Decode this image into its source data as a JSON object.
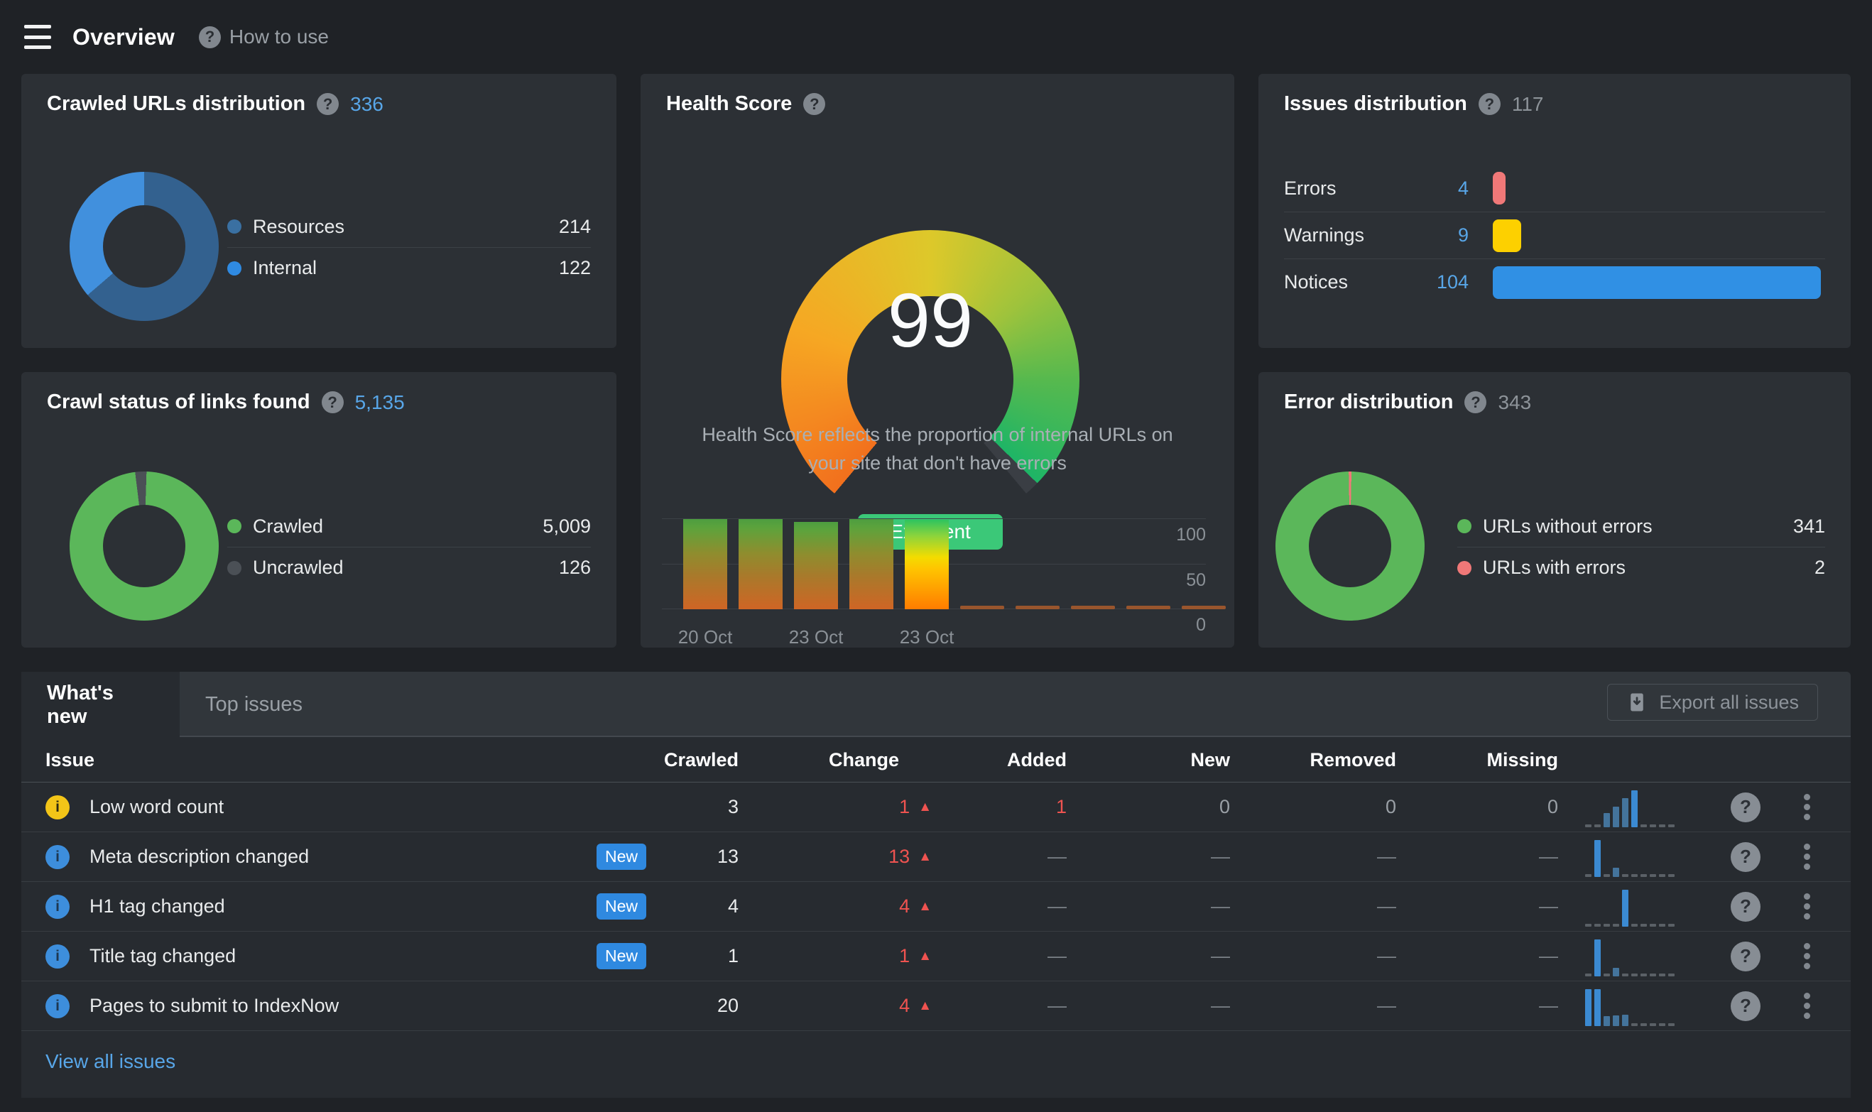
{
  "topbar": {
    "title": "Overview",
    "help_label": "How to use"
  },
  "colors": {
    "accent_blue": "#2f89e0",
    "link_blue": "#58a6e8",
    "red": "#ef5350",
    "green": "#5bb75a",
    "yellow": "#fdd000",
    "salmon": "#f07878",
    "badge_green": "#3bc878",
    "warning_yellow": "#f3c518"
  },
  "cards": {
    "crawled_urls": {
      "title": "Crawled URLs distribution",
      "total": "336",
      "donut": {
        "start": 0,
        "segments": [
          {
            "color": "#33618f",
            "value": 214
          },
          {
            "color": "#4190dd",
            "value": 122
          }
        ]
      },
      "legend": [
        {
          "color": "#3a70a2",
          "label": "Resources",
          "value": "214"
        },
        {
          "color": "#2f8ae2",
          "label": "Internal",
          "value": "122"
        }
      ]
    },
    "health_score": {
      "title": "Health Score",
      "score": "99",
      "rating": "Excellent",
      "description": "Health Score reflects the proportion of internal URLs on your site that don't have errors",
      "gauge": {
        "value": 99,
        "sweep": 280,
        "from": 220,
        "stops": [
          "#f2701d",
          "#f6a723",
          "#ddc82a",
          "#9ec33c",
          "#57b94e",
          "#1eb566"
        ],
        "notch_color": "#3a3e44"
      },
      "trend": {
        "values": [
          100,
          100,
          97,
          100,
          99,
          0,
          0,
          0,
          0,
          0
        ],
        "yticks": [
          "100",
          "50",
          "0"
        ],
        "xlabels": [
          {
            "text": "20 Oct",
            "slot": 0
          },
          {
            "text": "23 Oct",
            "slot": 2
          },
          {
            "text": "23 Oct",
            "slot": 4
          }
        ]
      }
    },
    "issues_distribution": {
      "title": "Issues distribution",
      "total": "117",
      "rows": [
        {
          "label": "Errors",
          "count": "4",
          "value": 4,
          "color": "#f07878"
        },
        {
          "label": "Warnings",
          "count": "9",
          "value": 9,
          "color": "#fdd000"
        },
        {
          "label": "Notices",
          "count": "104",
          "value": 104,
          "color": "#3090e4"
        }
      ],
      "max": 104
    },
    "crawl_status": {
      "title": "Crawl status of links found",
      "total": "5,135",
      "donut": {
        "start": -7,
        "segments": [
          {
            "color": "#4b5056",
            "value": 126
          },
          {
            "color": "#5bb75a",
            "value": 5009
          }
        ]
      },
      "legend": [
        {
          "color": "#5bb75a",
          "label": "Crawled",
          "value": "5,009"
        },
        {
          "color": "#4b5056",
          "label": "Uncrawled",
          "value": "126"
        }
      ]
    },
    "error_distribution": {
      "title": "Error distribution",
      "total": "343",
      "donut": {
        "start": -1,
        "segments": [
          {
            "color": "#f07878",
            "value": 2
          },
          {
            "color": "#5bb75a",
            "value": 341
          }
        ]
      },
      "legend": [
        {
          "color": "#5bb75a",
          "label": "URLs without errors",
          "value": "341"
        },
        {
          "color": "#f07878",
          "label": "URLs with errors",
          "value": "2"
        }
      ]
    }
  },
  "issues_panel": {
    "tabs": [
      {
        "label": "What's new",
        "active": true
      },
      {
        "label": "Top issues",
        "active": false
      }
    ],
    "export_label": "Export all issues",
    "columns": [
      "Issue",
      "Crawled",
      "Change",
      "Added",
      "New",
      "Removed",
      "Missing"
    ],
    "rows": [
      {
        "icon": "warning",
        "icon_color": "#f3c518",
        "title": "Low word count",
        "badge": "",
        "crawled": "3",
        "change": "1",
        "added": "1",
        "added_red": true,
        "new": "0",
        "removed": "0",
        "missing": "0",
        "spark": [
          0,
          0,
          0.3,
          0.5,
          0.75,
          1,
          0,
          0,
          0,
          0
        ]
      },
      {
        "icon": "info",
        "icon_color": "#3d8edc",
        "title": "Meta description changed",
        "badge": "New",
        "crawled": "13",
        "change": "13",
        "added": "—",
        "added_red": false,
        "new": "—",
        "removed": "—",
        "missing": "—",
        "spark": [
          0,
          1,
          0,
          0.15,
          0,
          0,
          0,
          0,
          0,
          0
        ]
      },
      {
        "icon": "info",
        "icon_color": "#3d8edc",
        "title": "H1 tag changed",
        "badge": "New",
        "crawled": "4",
        "change": "4",
        "added": "—",
        "added_red": false,
        "new": "—",
        "removed": "—",
        "missing": "—",
        "spark": [
          0,
          0,
          0,
          0,
          1,
          0,
          0,
          0,
          0,
          0
        ]
      },
      {
        "icon": "info",
        "icon_color": "#3d8edc",
        "title": "Title tag changed",
        "badge": "New",
        "crawled": "1",
        "change": "1",
        "added": "—",
        "added_red": false,
        "new": "—",
        "removed": "—",
        "missing": "—",
        "spark": [
          0,
          1,
          0,
          0.12,
          0,
          0,
          0,
          0,
          0,
          0
        ]
      },
      {
        "icon": "info",
        "icon_color": "#3d8edc",
        "title": "Pages to submit to IndexNow",
        "badge": "",
        "crawled": "20",
        "change": "4",
        "added": "—",
        "added_red": false,
        "new": "—",
        "removed": "—",
        "missing": "—",
        "spark": [
          1,
          1,
          0.18,
          0.2,
          0.22,
          0,
          0,
          0,
          0,
          0
        ]
      }
    ],
    "view_all": "View all issues"
  },
  "chart_data": [
    {
      "type": "pie",
      "title": "Crawled URLs distribution",
      "labels": [
        "Resources",
        "Internal"
      ],
      "values": [
        214,
        122
      ],
      "total": 336
    },
    {
      "type": "pie",
      "title": "Crawl status of links found",
      "labels": [
        "Crawled",
        "Uncrawled"
      ],
      "values": [
        5009,
        126
      ],
      "total": 5135
    },
    {
      "type": "pie",
      "title": "Error distribution",
      "labels": [
        "URLs without errors",
        "URLs with errors"
      ],
      "values": [
        341,
        2
      ],
      "total": 343
    },
    {
      "type": "bar",
      "title": "Issues distribution",
      "categories": [
        "Errors",
        "Warnings",
        "Notices"
      ],
      "values": [
        4,
        9,
        104
      ],
      "total": 117
    },
    {
      "type": "bar",
      "title": "Health Score trend",
      "x": [
        "20 Oct",
        "",
        "23 Oct",
        "",
        "23 Oct",
        "",
        "",
        "",
        "",
        ""
      ],
      "values": [
        100,
        100,
        97,
        100,
        99,
        0,
        0,
        0,
        0,
        0
      ],
      "ylim": [
        0,
        100
      ],
      "yticks": [
        0,
        50,
        100
      ]
    },
    {
      "type": "gauge",
      "title": "Health Score",
      "value": 99,
      "max": 100,
      "label": "Excellent"
    }
  ]
}
